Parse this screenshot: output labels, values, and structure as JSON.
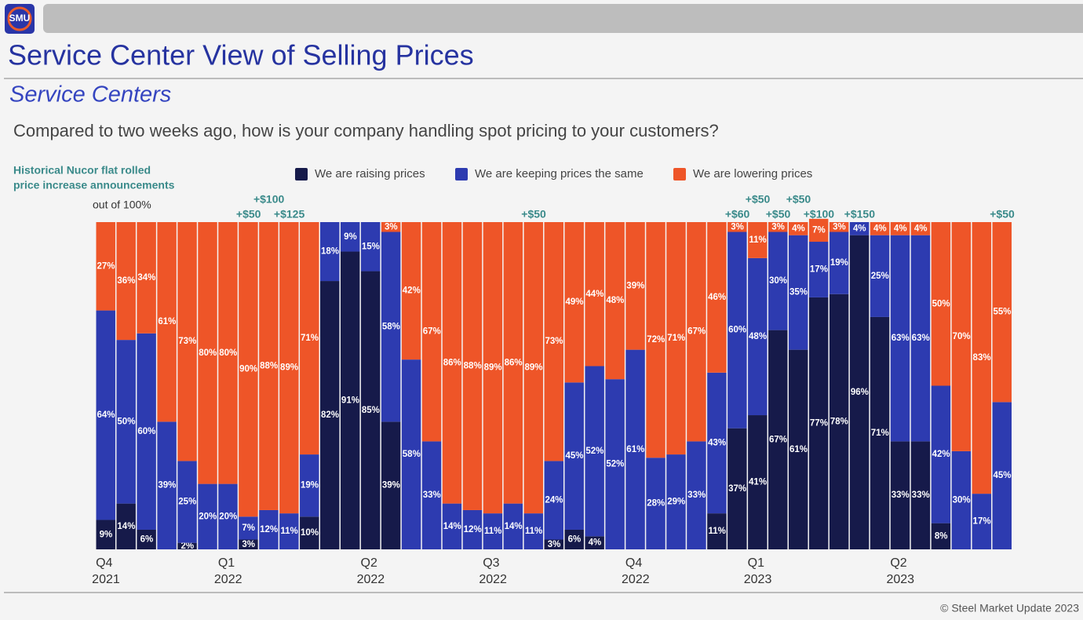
{
  "logo": "SMU",
  "header": {
    "title": "Service Center View of Selling Prices",
    "subtitle": "Service Centers"
  },
  "footer": "© Steel Market Update 2023",
  "chart_data": {
    "type": "stacked_bar",
    "title": "Compared to two weeks ago, how is your company handling spot pricing to your customers?",
    "note": "out of 100%",
    "annotation_title": [
      "Historical Nucor flat rolled",
      "price increase announcements"
    ],
    "ylim": [
      0,
      100
    ],
    "categories": [
      "Q4 2021",
      null,
      null,
      null,
      null,
      null,
      "Q1 2022",
      null,
      null,
      null,
      null,
      null,
      null,
      "Q2 2022",
      null,
      null,
      null,
      null,
      null,
      "Q3 2022",
      null,
      null,
      null,
      null,
      null,
      null,
      "Q4 2022",
      null,
      null,
      null,
      null,
      null,
      "Q1 2023",
      null,
      null,
      null,
      null,
      null,
      null,
      "Q2 2023",
      null,
      null,
      null,
      null,
      null
    ],
    "annotations": [
      null,
      null,
      null,
      null,
      null,
      null,
      null,
      "+$50",
      "+$100",
      "+$125",
      null,
      null,
      null,
      null,
      null,
      null,
      null,
      null,
      null,
      null,
      null,
      "+$50",
      null,
      null,
      null,
      null,
      null,
      null,
      null,
      null,
      null,
      "+$60",
      "+$50",
      "+$50",
      "+$50",
      "+$100",
      null,
      "+$150",
      null,
      null,
      null,
      null,
      null,
      null,
      "+$50"
    ],
    "series": [
      {
        "name": "We are raising prices",
        "color": "#161a4a",
        "values": [
          9,
          14,
          6,
          0,
          2,
          0,
          0,
          3,
          0,
          0,
          10,
          82,
          91,
          85,
          39,
          0,
          0,
          0,
          0,
          0,
          0,
          0,
          3,
          6,
          4,
          0,
          0,
          0,
          0,
          0,
          11,
          37,
          41,
          67,
          61,
          77,
          78,
          96,
          71,
          33,
          33,
          8,
          0,
          0,
          0
        ],
        "value_labels": [
          "9%",
          "14%",
          "6%",
          null,
          "2%",
          null,
          null,
          "3%",
          null,
          null,
          "10%",
          "82%",
          "91%",
          "85%",
          "39%",
          null,
          null,
          null,
          null,
          null,
          null,
          null,
          "3%",
          "6%",
          "4%",
          null,
          null,
          null,
          null,
          null,
          "11%",
          "37%",
          "41%",
          "67%",
          "61%",
          "77%",
          "78%",
          "96%",
          "71%",
          "33%",
          "33%",
          "8%",
          null,
          null,
          null
        ]
      },
      {
        "name": "We are keeping prices the same",
        "color": "#2d3bb0",
        "values": [
          64,
          50,
          60,
          39,
          25,
          20,
          20,
          7,
          12,
          11,
          19,
          18,
          9,
          15,
          58,
          58,
          33,
          14,
          12,
          11,
          14,
          11,
          24,
          45,
          52,
          52,
          61,
          28,
          29,
          33,
          43,
          60,
          48,
          30,
          35,
          17,
          19,
          4,
          25,
          63,
          63,
          42,
          30,
          17,
          45
        ],
        "value_labels": [
          "64%",
          "50%",
          "60%",
          "39%",
          "25%",
          "20%",
          "20%",
          "7%",
          "12%",
          "11%",
          "19%",
          "18%",
          "9%",
          "15%",
          "58%",
          "58%",
          "33%",
          "14%",
          "12%",
          "11%",
          "14%",
          "11%",
          "24%",
          "45%",
          "52%",
          "52%",
          "61%",
          "28%",
          "29%",
          "33%",
          "43%",
          "60%",
          "48%",
          "30%",
          "35%",
          "17%",
          "19%",
          "4%",
          "25%",
          "63%",
          "63%",
          "42%",
          "30%",
          "17%",
          "45%"
        ]
      },
      {
        "name": "We are lowering prices",
        "color": "#ee5528",
        "values": [
          27,
          36,
          34,
          61,
          73,
          80,
          80,
          90,
          88,
          89,
          71,
          0,
          0,
          0,
          3,
          42,
          67,
          86,
          88,
          89,
          86,
          89,
          73,
          49,
          44,
          48,
          39,
          72,
          71,
          67,
          46,
          3,
          11,
          3,
          4,
          7,
          3,
          0,
          4,
          4,
          4,
          50,
          70,
          83,
          55
        ],
        "value_labels": [
          "27%",
          "36%",
          "34%",
          "61%",
          "73%",
          "80%",
          "80%",
          "90%",
          "88%",
          "89%",
          "71%",
          null,
          null,
          null,
          "3%",
          "42%",
          "67%",
          "86%",
          "88%",
          "89%",
          "86%",
          "89%",
          "73%",
          "49%",
          "44%",
          "48%",
          "39%",
          "72%",
          "71%",
          "67%",
          "46%",
          "3%",
          "11%",
          "3%",
          "4%",
          "7%",
          "3%",
          null,
          "4%",
          "4%",
          "4%",
          "50%",
          "70%",
          "83%",
          "55%"
        ]
      }
    ]
  }
}
